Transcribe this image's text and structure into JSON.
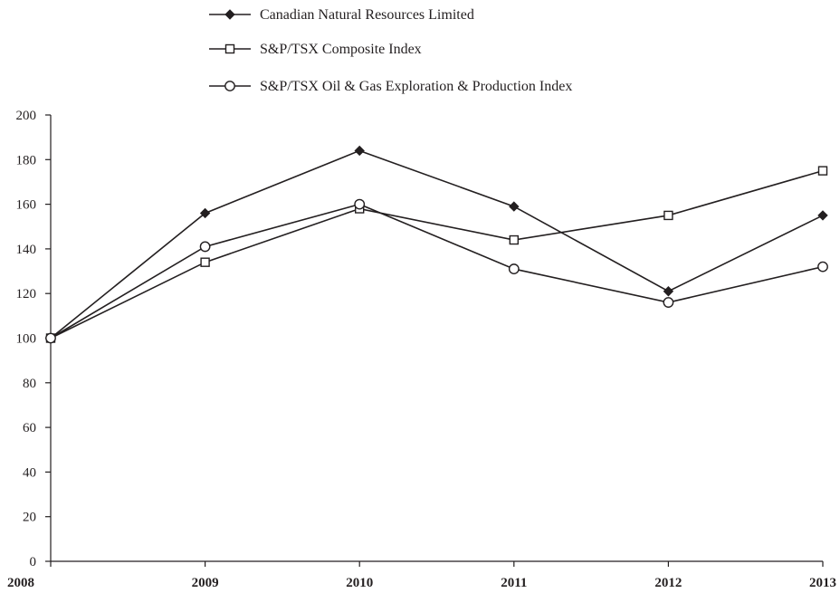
{
  "chart_data": {
    "type": "line",
    "title": "",
    "xlabel": "",
    "ylabel": "",
    "categories": [
      "2008",
      "2009",
      "2010",
      "2011",
      "2012",
      "2013"
    ],
    "ylim": [
      0,
      200
    ],
    "yticks": [
      0,
      20,
      40,
      60,
      80,
      100,
      120,
      140,
      160,
      180,
      200
    ],
    "grid": false,
    "legend_position": "top",
    "colors": {
      "series": "#231f20",
      "axis": "#231f20",
      "background": "#ffffff"
    },
    "series": [
      {
        "name": "Canadian Natural Resources Limited",
        "marker": "filled-diamond",
        "values": [
          100,
          156,
          184,
          159,
          121,
          155
        ]
      },
      {
        "name": "S&P/TSX Composite Index",
        "marker": "open-square",
        "values": [
          100,
          134,
          158,
          144,
          155,
          175
        ]
      },
      {
        "name": "S&P/TSX Oil & Gas Exploration & Production Index",
        "marker": "open-circle",
        "values": [
          100,
          141,
          160,
          131,
          116,
          132
        ]
      }
    ]
  }
}
